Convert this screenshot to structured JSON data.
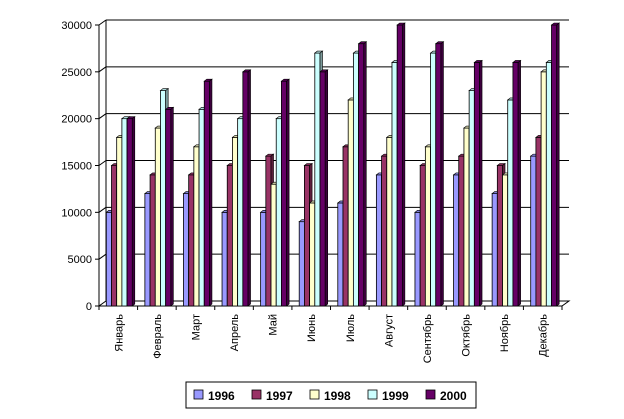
{
  "chart_data": {
    "type": "bar",
    "categories": [
      "Январь",
      "Февраль",
      "Март",
      "Апрель",
      "Май",
      "Июнь",
      "Июль",
      "Август",
      "Сентябрь",
      "Октябрь",
      "Ноябрь",
      "Декабрь"
    ],
    "series": [
      {
        "name": "1996",
        "color": "#9999ff",
        "values": [
          10000,
          12000,
          12000,
          10000,
          10000,
          9000,
          11000,
          14000,
          10000,
          14000,
          12000,
          16000
        ]
      },
      {
        "name": "1997",
        "color": "#993366",
        "values": [
          15000,
          14000,
          14000,
          15000,
          16000,
          15000,
          17000,
          16000,
          15000,
          16000,
          15000,
          18000
        ]
      },
      {
        "name": "1998",
        "color": "#ffffcc",
        "values": [
          18000,
          19000,
          17000,
          18000,
          13000,
          11000,
          22000,
          18000,
          17000,
          19000,
          14000,
          25000
        ]
      },
      {
        "name": "1999",
        "color": "#ccffff",
        "values": [
          20000,
          23000,
          21000,
          20000,
          20000,
          27000,
          27000,
          26000,
          27000,
          23000,
          22000,
          26000
        ]
      },
      {
        "name": "2000",
        "color": "#660066",
        "values": [
          20000,
          21000,
          24000,
          25000,
          24000,
          25000,
          28000,
          30000,
          28000,
          26000,
          26000,
          30000
        ]
      }
    ],
    "ylim": [
      0,
      30000
    ],
    "yticks": [
      0,
      5000,
      10000,
      15000,
      20000,
      25000,
      30000
    ],
    "grid": true,
    "legend_position": "bottom",
    "title": "",
    "xlabel": "",
    "ylabel": ""
  }
}
